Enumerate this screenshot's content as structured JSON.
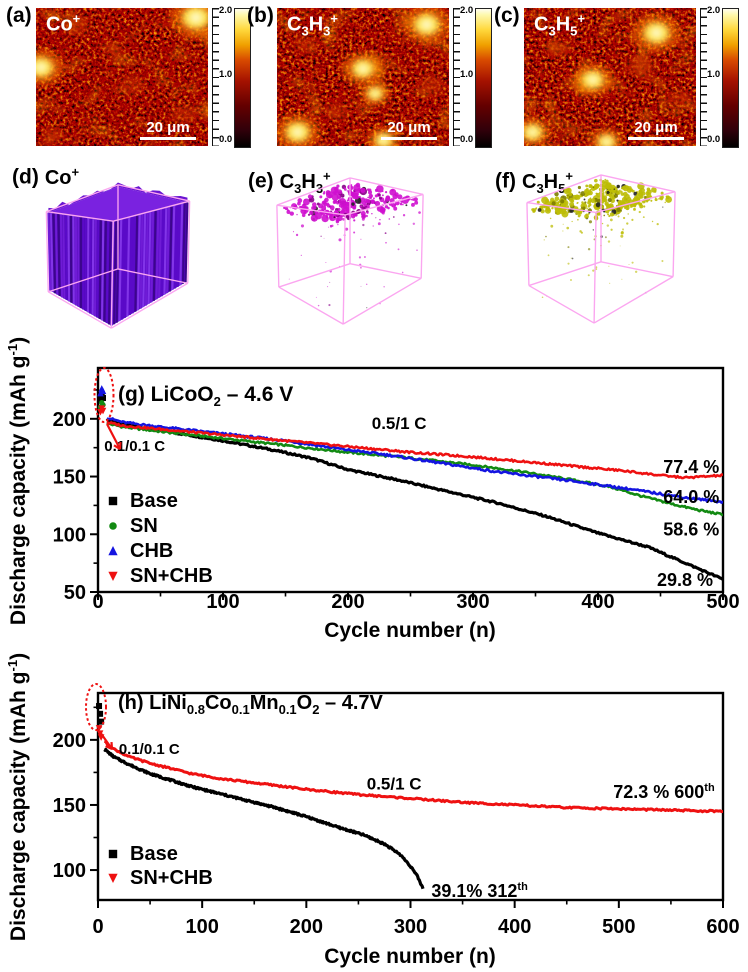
{
  "page": {
    "background": "#ffffff"
  },
  "sims_row": {
    "panels": [
      {
        "tag": "(a)",
        "formula_html": "Co<sup>+</sup>",
        "scalebar_label": "20 μm",
        "colorbar_ticks": [
          "2.0",
          "1.0",
          "0.0"
        ]
      },
      {
        "tag": "(b)",
        "formula_html": "C<sub>3</sub>H<sub>3</sub><sup>+</sup>",
        "scalebar_label": "20 μm",
        "colorbar_ticks": [
          "2.0",
          "1.0",
          "0.0"
        ]
      },
      {
        "tag": "(c)",
        "formula_html": "C<sub>3</sub>H<sub>5</sub><sup>+</sup>",
        "scalebar_label": "20 μm",
        "colorbar_ticks": [
          "2.0",
          "1.0",
          "0.0"
        ]
      }
    ]
  },
  "render_row": {
    "panels": [
      {
        "tag": "(d)",
        "formula_html": "Co<sup>+</sup>",
        "mode": "solid",
        "color": "#5a0ac8",
        "frame_color": "#fba6f0",
        "count": 0
      },
      {
        "tag": "(e)",
        "formula_html": "C<sub>3</sub>H<sub>3</sub><sup>+</sup>",
        "mode": "dots",
        "color": "#cf10cf",
        "frame_color": "#fba6f0",
        "count": 340
      },
      {
        "tag": "(f)",
        "formula_html": "C<sub>3</sub>H<sub>5</sub><sup>+</sup>",
        "mode": "dots",
        "color": "#bdbd06",
        "frame_color": "#fba6f0",
        "count": 420
      }
    ]
  },
  "chart_data": [
    {
      "id": "g",
      "type": "line",
      "title_html": "(g) LiCoO<sub>2</sub> – 4.6 V",
      "xlabel": "Cycle number (n)",
      "ylabel_html": "Discharge capacity (mAh g<sup>-1</sup>)",
      "xlim": [
        0,
        500
      ],
      "ylim": [
        50,
        244
      ],
      "xticks": [
        0,
        100,
        200,
        300,
        400,
        500
      ],
      "yticks": [
        50,
        100,
        150,
        200
      ],
      "grid": false,
      "legend_position": "lower-left",
      "annotations": [
        {
          "text": "0.1/0.1 C",
          "x": 5,
          "y": 172,
          "anchor": "start",
          "size": 15
        },
        {
          "text": "0.5/1 C",
          "x": 219,
          "y": 191,
          "anchor": "start",
          "size": 17
        },
        {
          "text": "77.4 %",
          "x": 497,
          "y": 153,
          "anchor": "end",
          "size": 18
        },
        {
          "text": "64.0 %",
          "x": 497,
          "y": 127,
          "anchor": "end",
          "size": 18
        },
        {
          "text": "58.6 %",
          "x": 497,
          "y": 99,
          "anchor": "end",
          "size": 18
        },
        {
          "text": "29.8 %",
          "x": 492,
          "y": 55,
          "anchor": "end",
          "size": 18
        }
      ],
      "annotations_html": [],
      "series": [
        {
          "name": "Base",
          "color": "#000000",
          "marker": "square",
          "width": 3.2,
          "noise": 1.5,
          "head": [
            [
              2,
              216
            ],
            [
              3,
              220
            ],
            [
              4,
              218
            ]
          ],
          "anchors": [
            [
              7,
              199
            ],
            [
              20,
              195
            ],
            [
              50,
              190
            ],
            [
              100,
              181
            ],
            [
              140,
              173
            ],
            [
              170,
              166
            ],
            [
              200,
              156
            ],
            [
              240,
              147
            ],
            [
              280,
              137
            ],
            [
              320,
              127
            ],
            [
              360,
              115
            ],
            [
              400,
              101
            ],
            [
              440,
              89
            ],
            [
              470,
              75
            ],
            [
              500,
              61
            ]
          ]
        },
        {
          "name": "SN",
          "color": "#128a12",
          "marker": "circle",
          "width": 2.6,
          "noise": 1.7,
          "head": [
            [
              2,
              210
            ],
            [
              3,
              214
            ],
            [
              4,
              212
            ]
          ],
          "anchors": [
            [
              7,
              196
            ],
            [
              20,
              193
            ],
            [
              50,
              189
            ],
            [
              100,
              183
            ],
            [
              150,
              177
            ],
            [
              200,
              171
            ],
            [
              250,
              166
            ],
            [
              300,
              160
            ],
            [
              340,
              154
            ],
            [
              380,
              147
            ],
            [
              410,
              141
            ],
            [
              435,
              133
            ],
            [
              460,
              126
            ],
            [
              480,
              121
            ],
            [
              500,
              117
            ]
          ]
        },
        {
          "name": "CHB",
          "color": "#1414e0",
          "marker": "triangle-up",
          "width": 2.6,
          "noise": 1.9,
          "head": [
            [
              2,
              222
            ],
            [
              3,
              226
            ],
            [
              4,
              224
            ]
          ],
          "anchors": [
            [
              7,
              201
            ],
            [
              20,
              197
            ],
            [
              50,
              193
            ],
            [
              100,
              187
            ],
            [
              150,
              181
            ],
            [
              200,
              173
            ],
            [
              230,
              169
            ],
            [
              260,
              164
            ],
            [
              290,
              159
            ],
            [
              320,
              154
            ],
            [
              350,
              150
            ],
            [
              380,
              146
            ],
            [
              420,
              140
            ],
            [
              450,
              135
            ],
            [
              475,
              131
            ],
            [
              500,
              128
            ]
          ]
        },
        {
          "name": "SN+CHB",
          "color": "#ee1111",
          "marker": "triangle-down",
          "width": 2.6,
          "noise": 1.7,
          "head": [
            [
              2,
              206
            ],
            [
              3,
              209
            ],
            [
              4,
              207
            ]
          ],
          "anchors": [
            [
              7,
              197
            ],
            [
              20,
              194
            ],
            [
              50,
              191
            ],
            [
              100,
              186
            ],
            [
              150,
              181
            ],
            [
              200,
              176
            ],
            [
              250,
              171
            ],
            [
              300,
              167
            ],
            [
              340,
              163
            ],
            [
              380,
              159
            ],
            [
              420,
              155
            ],
            [
              450,
              151
            ],
            [
              470,
              149
            ],
            [
              500,
              151
            ]
          ]
        }
      ],
      "legend": [
        {
          "label": "Base",
          "marker": "square",
          "color": "#000000"
        },
        {
          "label": "SN",
          "marker": "circle",
          "color": "#128a12"
        },
        {
          "label": "CHB",
          "marker": "triangle-up",
          "color": "#1414e0"
        },
        {
          "label": "SN+CHB",
          "marker": "triangle-down",
          "color": "#ee1111"
        }
      ]
    },
    {
      "id": "h",
      "type": "line",
      "title_html": "(h) LiNi<sub>0.8</sub>Co<sub>0.1</sub>Mn<sub>0.1</sub>O<sub>2</sub> – 4.7V",
      "xlabel": "Cycle number (n)",
      "ylabel_html": "Discharge capacity (mAh g<sup>-1</sup>)",
      "xlim": [
        0,
        600
      ],
      "ylim": [
        77,
        236
      ],
      "xticks": [
        0,
        100,
        200,
        300,
        400,
        500,
        600
      ],
      "yticks": [
        100,
        150,
        200
      ],
      "grid": false,
      "legend_position": "lower-left",
      "annotations": [
        {
          "text": "0.1/0.1 C",
          "x": 20,
          "y": 189,
          "anchor": "start",
          "size": 15
        },
        {
          "text": "0.5/1 C",
          "x": 258,
          "y": 162,
          "anchor": "start",
          "size": 17
        }
      ],
      "annotations_html": [
        {
          "html": "72.3 % 600<sup>th</sup>",
          "x": 592,
          "y": 152,
          "align": "right"
        },
        {
          "html": "39.1% 312<sup>th</sup>",
          "x": 320,
          "y": 76,
          "align": "left"
        }
      ],
      "series": [
        {
          "name": "Base",
          "color": "#000000",
          "marker": "square",
          "width": 3.2,
          "noise": 1.4,
          "head": [
            [
              1,
              226
            ],
            [
              2,
              220
            ],
            [
              3,
              214
            ]
          ],
          "anchors": [
            [
              6,
              193
            ],
            [
              15,
              187
            ],
            [
              30,
              181
            ],
            [
              50,
              174
            ],
            [
              70,
              169
            ],
            [
              90,
              164
            ],
            [
              110,
              160
            ],
            [
              140,
              154
            ],
            [
              170,
              148
            ],
            [
              200,
              141
            ],
            [
              230,
              133
            ],
            [
              255,
              127
            ],
            [
              275,
              120
            ],
            [
              290,
              112
            ],
            [
              300,
              103
            ],
            [
              306,
              96
            ],
            [
              312,
              86
            ]
          ]
        },
        {
          "name": "SN+CHB",
          "color": "#ee1111",
          "marker": "triangle-down",
          "width": 3.0,
          "noise": 1.3,
          "head": [
            [
              1,
              209
            ],
            [
              2,
              205
            ],
            [
              3,
              202
            ]
          ],
          "anchors": [
            [
              6,
              199
            ],
            [
              15,
              193
            ],
            [
              30,
              187
            ],
            [
              50,
              182
            ],
            [
              70,
              178
            ],
            [
              90,
              174
            ],
            [
              120,
              170
            ],
            [
              150,
              167
            ],
            [
              200,
              162
            ],
            [
              250,
              158
            ],
            [
              300,
              155
            ],
            [
              350,
              152
            ],
            [
              400,
              150
            ],
            [
              450,
              148
            ],
            [
              500,
              147
            ],
            [
              550,
              146
            ],
            [
              600,
              145
            ]
          ]
        }
      ],
      "legend": [
        {
          "label": "Base",
          "marker": "square",
          "color": "#000000"
        },
        {
          "label": "SN+CHB",
          "marker": "triangle-down",
          "color": "#ee1111"
        }
      ]
    }
  ]
}
